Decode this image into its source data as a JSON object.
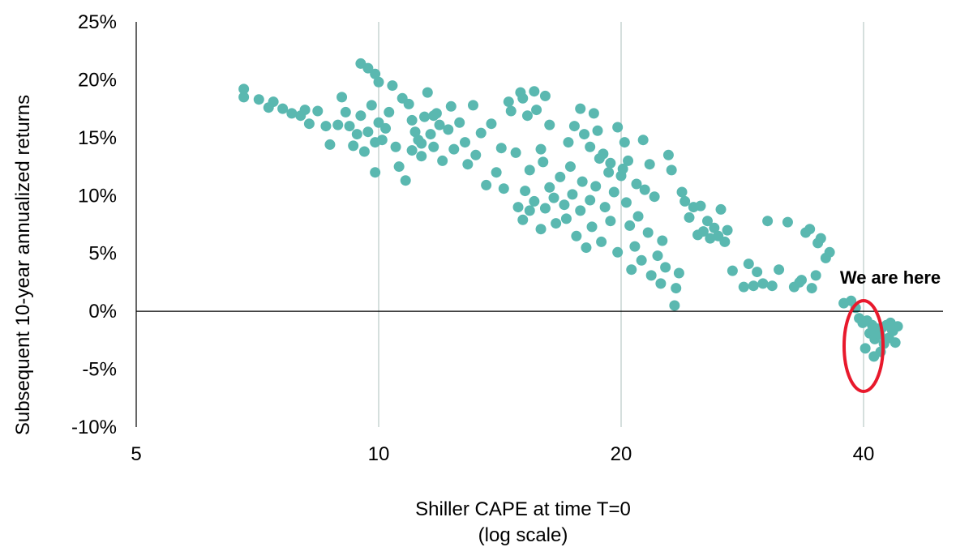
{
  "chart_data": {
    "type": "scatter",
    "xlabel": "Shiller CAPE at time T=0",
    "xlabel_note": "(log scale)",
    "ylabel": "Subsequent 10-year annualized returns",
    "x_scale": "log",
    "xlim": [
      5,
      47
    ],
    "ylim": [
      -10,
      25
    ],
    "x_ticks": [
      5,
      10,
      20,
      40
    ],
    "x_tick_labels": [
      "5",
      "10",
      "20",
      "40"
    ],
    "y_ticks": [
      -10,
      -5,
      0,
      5,
      10,
      15,
      20,
      25
    ],
    "y_tick_labels": [
      "-10%",
      "-5%",
      "0%",
      "5%",
      "10%",
      "15%",
      "20%",
      "25%"
    ],
    "grid": "vertical at x ticks",
    "point_color": "#5ab8b0",
    "highlight_color": "#e8192c",
    "annotation": {
      "text": "We are here",
      "x": 40,
      "y": -3
    },
    "series": [
      {
        "points": [
          [
            6.8,
            19.2
          ],
          [
            6.8,
            18.5
          ],
          [
            7.1,
            18.3
          ],
          [
            7.3,
            17.6
          ],
          [
            7.4,
            18.1
          ],
          [
            7.6,
            17.5
          ],
          [
            7.8,
            17.1
          ],
          [
            8.0,
            16.9
          ],
          [
            8.1,
            17.4
          ],
          [
            8.2,
            16.2
          ],
          [
            8.4,
            17.3
          ],
          [
            8.6,
            16.0
          ],
          [
            8.7,
            14.4
          ],
          [
            8.9,
            16.1
          ],
          [
            9.0,
            18.5
          ],
          [
            9.1,
            17.2
          ],
          [
            9.2,
            16.0
          ],
          [
            9.3,
            14.3
          ],
          [
            9.4,
            15.3
          ],
          [
            9.5,
            16.9
          ],
          [
            9.6,
            13.8
          ],
          [
            9.7,
            15.5
          ],
          [
            9.8,
            17.8
          ],
          [
            9.9,
            14.6
          ],
          [
            10.0,
            16.3
          ],
          [
            9.9,
            12.0
          ],
          [
            10.1,
            14.8
          ],
          [
            10.2,
            15.8
          ],
          [
            10.3,
            17.2
          ],
          [
            10.5,
            14.2
          ],
          [
            9.5,
            21.4
          ],
          [
            9.7,
            21.0
          ],
          [
            9.9,
            20.5
          ],
          [
            10.0,
            19.8
          ],
          [
            10.4,
            19.5
          ],
          [
            10.7,
            18.4
          ],
          [
            10.9,
            17.9
          ],
          [
            11.0,
            16.5
          ],
          [
            11.1,
            15.5
          ],
          [
            11.2,
            14.8
          ],
          [
            11.3,
            13.4
          ],
          [
            11.4,
            16.8
          ],
          [
            11.5,
            18.9
          ],
          [
            11.6,
            15.3
          ],
          [
            11.7,
            14.2
          ],
          [
            11.8,
            17.1
          ],
          [
            11.9,
            16.1
          ],
          [
            12.0,
            13.0
          ],
          [
            12.2,
            15.7
          ],
          [
            12.3,
            17.7
          ],
          [
            10.6,
            12.5
          ],
          [
            10.8,
            11.3
          ],
          [
            11.0,
            13.9
          ],
          [
            11.3,
            14.5
          ],
          [
            11.7,
            16.9
          ],
          [
            12.4,
            14.0
          ],
          [
            12.6,
            16.3
          ],
          [
            12.8,
            14.6
          ],
          [
            12.9,
            12.7
          ],
          [
            13.1,
            17.8
          ],
          [
            13.2,
            13.5
          ],
          [
            13.4,
            15.4
          ],
          [
            13.6,
            10.9
          ],
          [
            13.8,
            16.2
          ],
          [
            14.0,
            12.0
          ],
          [
            14.2,
            14.1
          ],
          [
            14.3,
            10.6
          ],
          [
            14.5,
            18.1
          ],
          [
            14.6,
            17.3
          ],
          [
            14.8,
            13.7
          ],
          [
            15.0,
            18.9
          ],
          [
            15.1,
            18.4
          ],
          [
            15.3,
            16.9
          ],
          [
            15.4,
            12.2
          ],
          [
            15.6,
            19.0
          ],
          [
            15.7,
            17.4
          ],
          [
            15.9,
            14.0
          ],
          [
            16.0,
            12.9
          ],
          [
            16.1,
            18.6
          ],
          [
            16.3,
            16.1
          ],
          [
            14.9,
            9.0
          ],
          [
            15.1,
            7.9
          ],
          [
            15.2,
            10.4
          ],
          [
            15.4,
            8.7
          ],
          [
            15.6,
            9.5
          ],
          [
            15.9,
            7.1
          ],
          [
            16.1,
            8.9
          ],
          [
            16.3,
            10.7
          ],
          [
            16.5,
            9.8
          ],
          [
            16.6,
            7.6
          ],
          [
            16.8,
            11.6
          ],
          [
            17.0,
            9.2
          ],
          [
            17.1,
            8.0
          ],
          [
            17.3,
            12.5
          ],
          [
            17.4,
            10.1
          ],
          [
            17.6,
            6.5
          ],
          [
            17.8,
            8.7
          ],
          [
            17.9,
            11.2
          ],
          [
            18.1,
            5.5
          ],
          [
            18.3,
            9.6
          ],
          [
            18.4,
            7.3
          ],
          [
            18.6,
            10.8
          ],
          [
            18.8,
            13.2
          ],
          [
            18.9,
            6.0
          ],
          [
            19.1,
            9.0
          ],
          [
            19.3,
            12.0
          ],
          [
            19.4,
            7.8
          ],
          [
            19.6,
            10.3
          ],
          [
            19.8,
            5.1
          ],
          [
            20.0,
            11.7
          ],
          [
            17.2,
            14.6
          ],
          [
            17.5,
            16.0
          ],
          [
            17.8,
            17.5
          ],
          [
            18.0,
            15.3
          ],
          [
            18.3,
            14.2
          ],
          [
            18.5,
            17.1
          ],
          [
            18.7,
            15.6
          ],
          [
            19.0,
            13.6
          ],
          [
            19.4,
            12.8
          ],
          [
            19.8,
            15.9
          ],
          [
            20.1,
            12.3
          ],
          [
            20.3,
            9.4
          ],
          [
            20.5,
            7.4
          ],
          [
            20.6,
            3.6
          ],
          [
            20.8,
            5.6
          ],
          [
            21.0,
            8.2
          ],
          [
            21.2,
            4.4
          ],
          [
            21.4,
            10.5
          ],
          [
            21.6,
            6.8
          ],
          [
            21.8,
            3.1
          ],
          [
            20.2,
            14.6
          ],
          [
            20.4,
            13.0
          ],
          [
            20.9,
            11.0
          ],
          [
            21.3,
            14.8
          ],
          [
            21.7,
            12.7
          ],
          [
            22.0,
            9.9
          ],
          [
            22.2,
            4.8
          ],
          [
            22.4,
            2.4
          ],
          [
            22.5,
            6.1
          ],
          [
            22.7,
            3.8
          ],
          [
            22.9,
            13.5
          ],
          [
            23.1,
            12.2
          ],
          [
            23.3,
            0.5
          ],
          [
            23.4,
            2.0
          ],
          [
            23.6,
            3.3
          ],
          [
            23.8,
            10.3
          ],
          [
            24.0,
            9.5
          ],
          [
            24.3,
            8.1
          ],
          [
            24.6,
            9.0
          ],
          [
            24.9,
            6.6
          ],
          [
            25.1,
            9.1
          ],
          [
            25.3,
            6.9
          ],
          [
            25.6,
            7.8
          ],
          [
            25.8,
            6.3
          ],
          [
            26.1,
            7.2
          ],
          [
            26.4,
            6.5
          ],
          [
            26.6,
            8.8
          ],
          [
            26.9,
            6.0
          ],
          [
            27.1,
            7.0
          ],
          [
            27.5,
            3.5
          ],
          [
            28.4,
            2.1
          ],
          [
            28.8,
            4.1
          ],
          [
            29.2,
            2.2
          ],
          [
            29.5,
            3.4
          ],
          [
            30.0,
            2.4
          ],
          [
            30.4,
            7.8
          ],
          [
            30.8,
            2.2
          ],
          [
            31.4,
            3.6
          ],
          [
            32.2,
            7.7
          ],
          [
            32.8,
            2.1
          ],
          [
            33.3,
            2.5
          ],
          [
            33.9,
            6.8
          ],
          [
            34.5,
            2.0
          ],
          [
            34.9,
            3.1
          ],
          [
            35.1,
            5.9
          ],
          [
            35.4,
            6.3
          ],
          [
            35.9,
            4.6
          ],
          [
            36.3,
            5.1
          ],
          [
            34.3,
            7.1
          ],
          [
            33.5,
            2.7
          ],
          [
            37.8,
            0.7
          ],
          [
            38.6,
            0.9
          ],
          [
            39.1,
            0.3
          ],
          [
            39.5,
            -0.6
          ],
          [
            39.9,
            -1.0
          ],
          [
            40.4,
            -0.8
          ],
          [
            40.7,
            -1.9
          ],
          [
            41.0,
            -1.2
          ],
          [
            41.3,
            -2.4
          ],
          [
            41.6,
            -1.5
          ],
          [
            41.9,
            -2.0
          ],
          [
            42.2,
            -1.4
          ],
          [
            42.4,
            -2.8
          ],
          [
            42.7,
            -1.2
          ],
          [
            43.0,
            -2.3
          ],
          [
            43.2,
            -1.0
          ],
          [
            43.5,
            -1.7
          ],
          [
            43.8,
            -2.7
          ],
          [
            44.1,
            -1.3
          ],
          [
            40.2,
            -3.2
          ],
          [
            41.2,
            -3.9
          ],
          [
            42.0,
            -3.5
          ],
          [
            43.4,
            -1.6
          ]
        ]
      }
    ]
  }
}
